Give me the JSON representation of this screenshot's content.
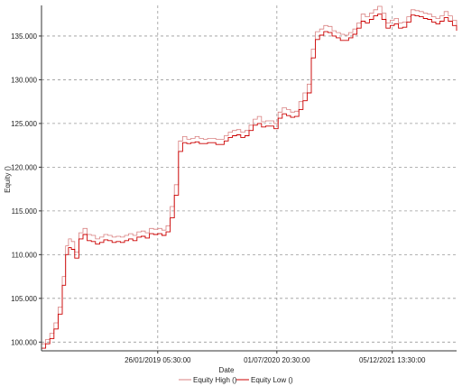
{
  "chart_data": {
    "type": "line",
    "xlabel": "Date",
    "ylabel": "Equity ()",
    "ylim": [
      99000,
      138500
    ],
    "xlim": [
      0,
      1000
    ],
    "grid": true,
    "legend_position": "bottom-center",
    "x_ticks": [
      {
        "x": 280,
        "label": "26/01/2019 05:30:00"
      },
      {
        "x": 567,
        "label": "01/07/2020 20:30:00"
      },
      {
        "x": 845,
        "label": "05/12/2021 13:30:00"
      }
    ],
    "y_ticks": [
      {
        "value": 100000,
        "label": "100.000"
      },
      {
        "value": 105000,
        "label": "105.000"
      },
      {
        "value": 110000,
        "label": "110.000"
      },
      {
        "value": 115000,
        "label": "115.000"
      },
      {
        "value": 120000,
        "label": "120.000"
      },
      {
        "value": 125000,
        "label": "125.000"
      },
      {
        "value": 130000,
        "label": "130.000"
      },
      {
        "value": 135000,
        "label": "135.000"
      }
    ],
    "series": [
      {
        "name": "Equity High ()",
        "color": "#d98080",
        "x": [
          0,
          10,
          20,
          30,
          40,
          50,
          58,
          65,
          72,
          80,
          90,
          100,
          110,
          120,
          130,
          140,
          150,
          160,
          170,
          180,
          190,
          200,
          210,
          220,
          230,
          240,
          250,
          260,
          270,
          280,
          290,
          300,
          310,
          320,
          330,
          340,
          350,
          360,
          370,
          380,
          390,
          400,
          410,
          420,
          430,
          440,
          450,
          460,
          470,
          480,
          490,
          500,
          510,
          520,
          530,
          540,
          550,
          560,
          570,
          580,
          590,
          600,
          610,
          620,
          630,
          640,
          650,
          660,
          670,
          680,
          690,
          700,
          710,
          720,
          730,
          740,
          750,
          760,
          770,
          780,
          790,
          800,
          810,
          820,
          830,
          840,
          850,
          860,
          870,
          880,
          890,
          900,
          910,
          920,
          930,
          940,
          950,
          960,
          970,
          980,
          990,
          1000
        ],
        "y": [
          99800,
          100300,
          101000,
          102200,
          104000,
          107500,
          111000,
          111800,
          111500,
          110300,
          112500,
          113000,
          112300,
          112200,
          111800,
          112000,
          112300,
          112200,
          112000,
          112100,
          112000,
          112200,
          112400,
          112200,
          112600,
          112700,
          112500,
          113000,
          112900,
          113000,
          112800,
          113300,
          115500,
          118000,
          123000,
          123500,
          123200,
          123300,
          123500,
          123300,
          123200,
          123300,
          123300,
          123200,
          123200,
          123600,
          124000,
          124200,
          124300,
          124000,
          124200,
          124800,
          125500,
          125800,
          125200,
          125300,
          125300,
          125000,
          126300,
          126800,
          126600,
          126300,
          126400,
          127500,
          128500,
          129500,
          133500,
          135500,
          135800,
          136200,
          136100,
          135600,
          135400,
          135200,
          135100,
          135400,
          135800,
          136500,
          137500,
          137200,
          137600,
          138000,
          138400,
          137600,
          136500,
          136800,
          137000,
          136500,
          136600,
          137200,
          138000,
          137900,
          137800,
          137600,
          137500,
          137200,
          137000,
          137300,
          137800,
          137300,
          136800,
          136200
        ]
      },
      {
        "name": "Equity Low ()",
        "color": "#cc0000",
        "x": [
          0,
          10,
          20,
          30,
          40,
          50,
          58,
          65,
          72,
          80,
          90,
          100,
          110,
          120,
          130,
          140,
          150,
          160,
          170,
          180,
          190,
          200,
          210,
          220,
          230,
          240,
          250,
          260,
          270,
          280,
          290,
          300,
          310,
          320,
          330,
          340,
          350,
          360,
          370,
          380,
          390,
          400,
          410,
          420,
          430,
          440,
          450,
          460,
          470,
          480,
          490,
          500,
          510,
          520,
          530,
          540,
          550,
          560,
          570,
          580,
          590,
          600,
          610,
          620,
          630,
          640,
          650,
          660,
          670,
          680,
          690,
          700,
          710,
          720,
          730,
          740,
          750,
          760,
          770,
          780,
          790,
          800,
          810,
          820,
          830,
          840,
          850,
          860,
          870,
          880,
          890,
          900,
          910,
          920,
          930,
          940,
          950,
          960,
          970,
          980,
          990,
          1000
        ],
        "y": [
          99300,
          99800,
          100400,
          101500,
          103200,
          106500,
          110000,
          110800,
          110600,
          109600,
          111800,
          112300,
          111600,
          111500,
          111200,
          111400,
          111700,
          111600,
          111400,
          111500,
          111400,
          111600,
          111800,
          111600,
          112000,
          112100,
          111900,
          112400,
          112300,
          112400,
          112200,
          112600,
          114200,
          116800,
          121800,
          122800,
          122700,
          122800,
          122900,
          122700,
          122700,
          122800,
          122800,
          122600,
          122600,
          123000,
          123400,
          123600,
          123700,
          123400,
          123600,
          124200,
          124800,
          125000,
          124600,
          124700,
          124700,
          124400,
          125600,
          126100,
          125900,
          125700,
          125800,
          126600,
          127600,
          128500,
          132500,
          134600,
          135100,
          135500,
          135400,
          135000,
          134800,
          134500,
          134500,
          134800,
          135200,
          135900,
          136700,
          136500,
          136900,
          137300,
          137500,
          136900,
          135900,
          136200,
          136400,
          135900,
          136000,
          136600,
          137400,
          137300,
          137200,
          137000,
          136900,
          136600,
          136400,
          136700,
          137100,
          136700,
          136200,
          135600
        ]
      }
    ]
  }
}
